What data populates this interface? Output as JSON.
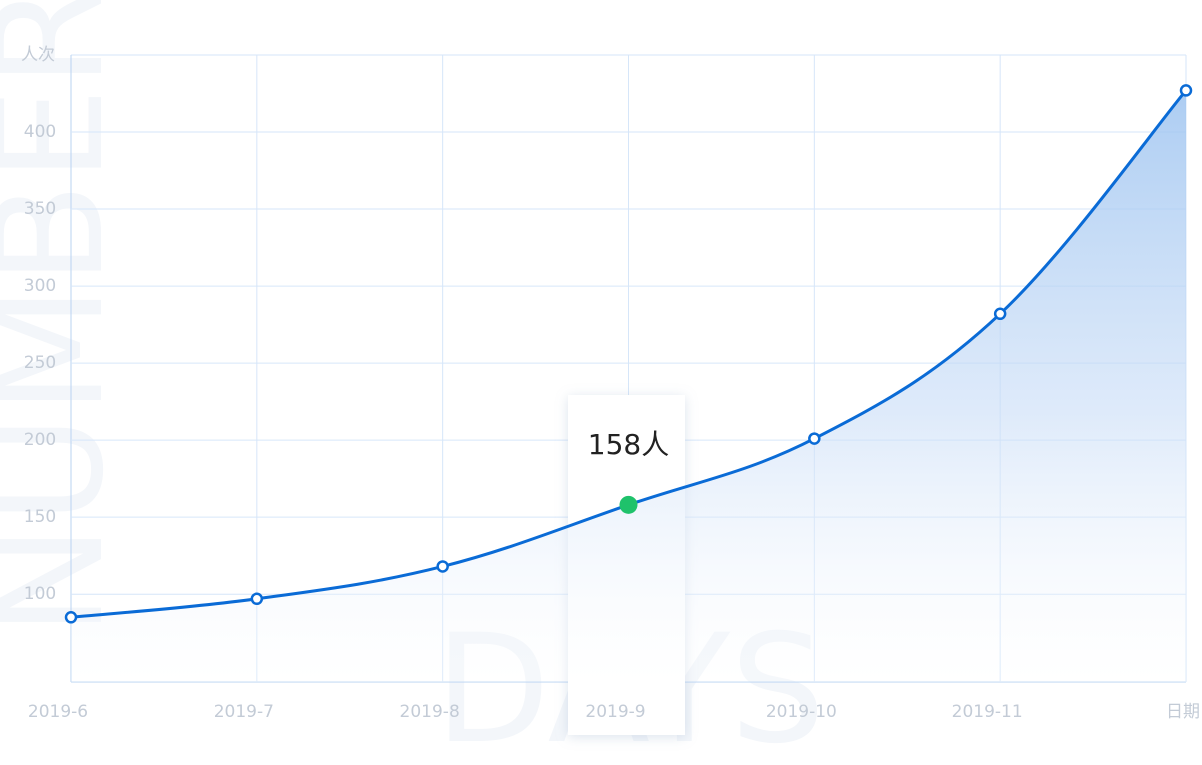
{
  "chart_data": {
    "type": "area",
    "y_label": "人次",
    "x_label": "日期",
    "watermark_y": "NUMBER",
    "watermark_x": "DAYS",
    "categories": [
      "2019-6",
      "2019-7",
      "2019-8",
      "2019-9",
      "2019-10",
      "2019-11",
      null
    ],
    "values": [
      85,
      97,
      118,
      158,
      201,
      282,
      427
    ],
    "value_labels": [
      null,
      null,
      null,
      "158人",
      null,
      null,
      null
    ],
    "color": "#0a6bd6",
    "highlight": 3,
    "highlight_color": "#1fc26b",
    "ylim": [
      43,
      450
    ],
    "yticks": [
      100,
      150,
      200,
      250,
      300,
      350,
      400
    ],
    "grid": true
  }
}
